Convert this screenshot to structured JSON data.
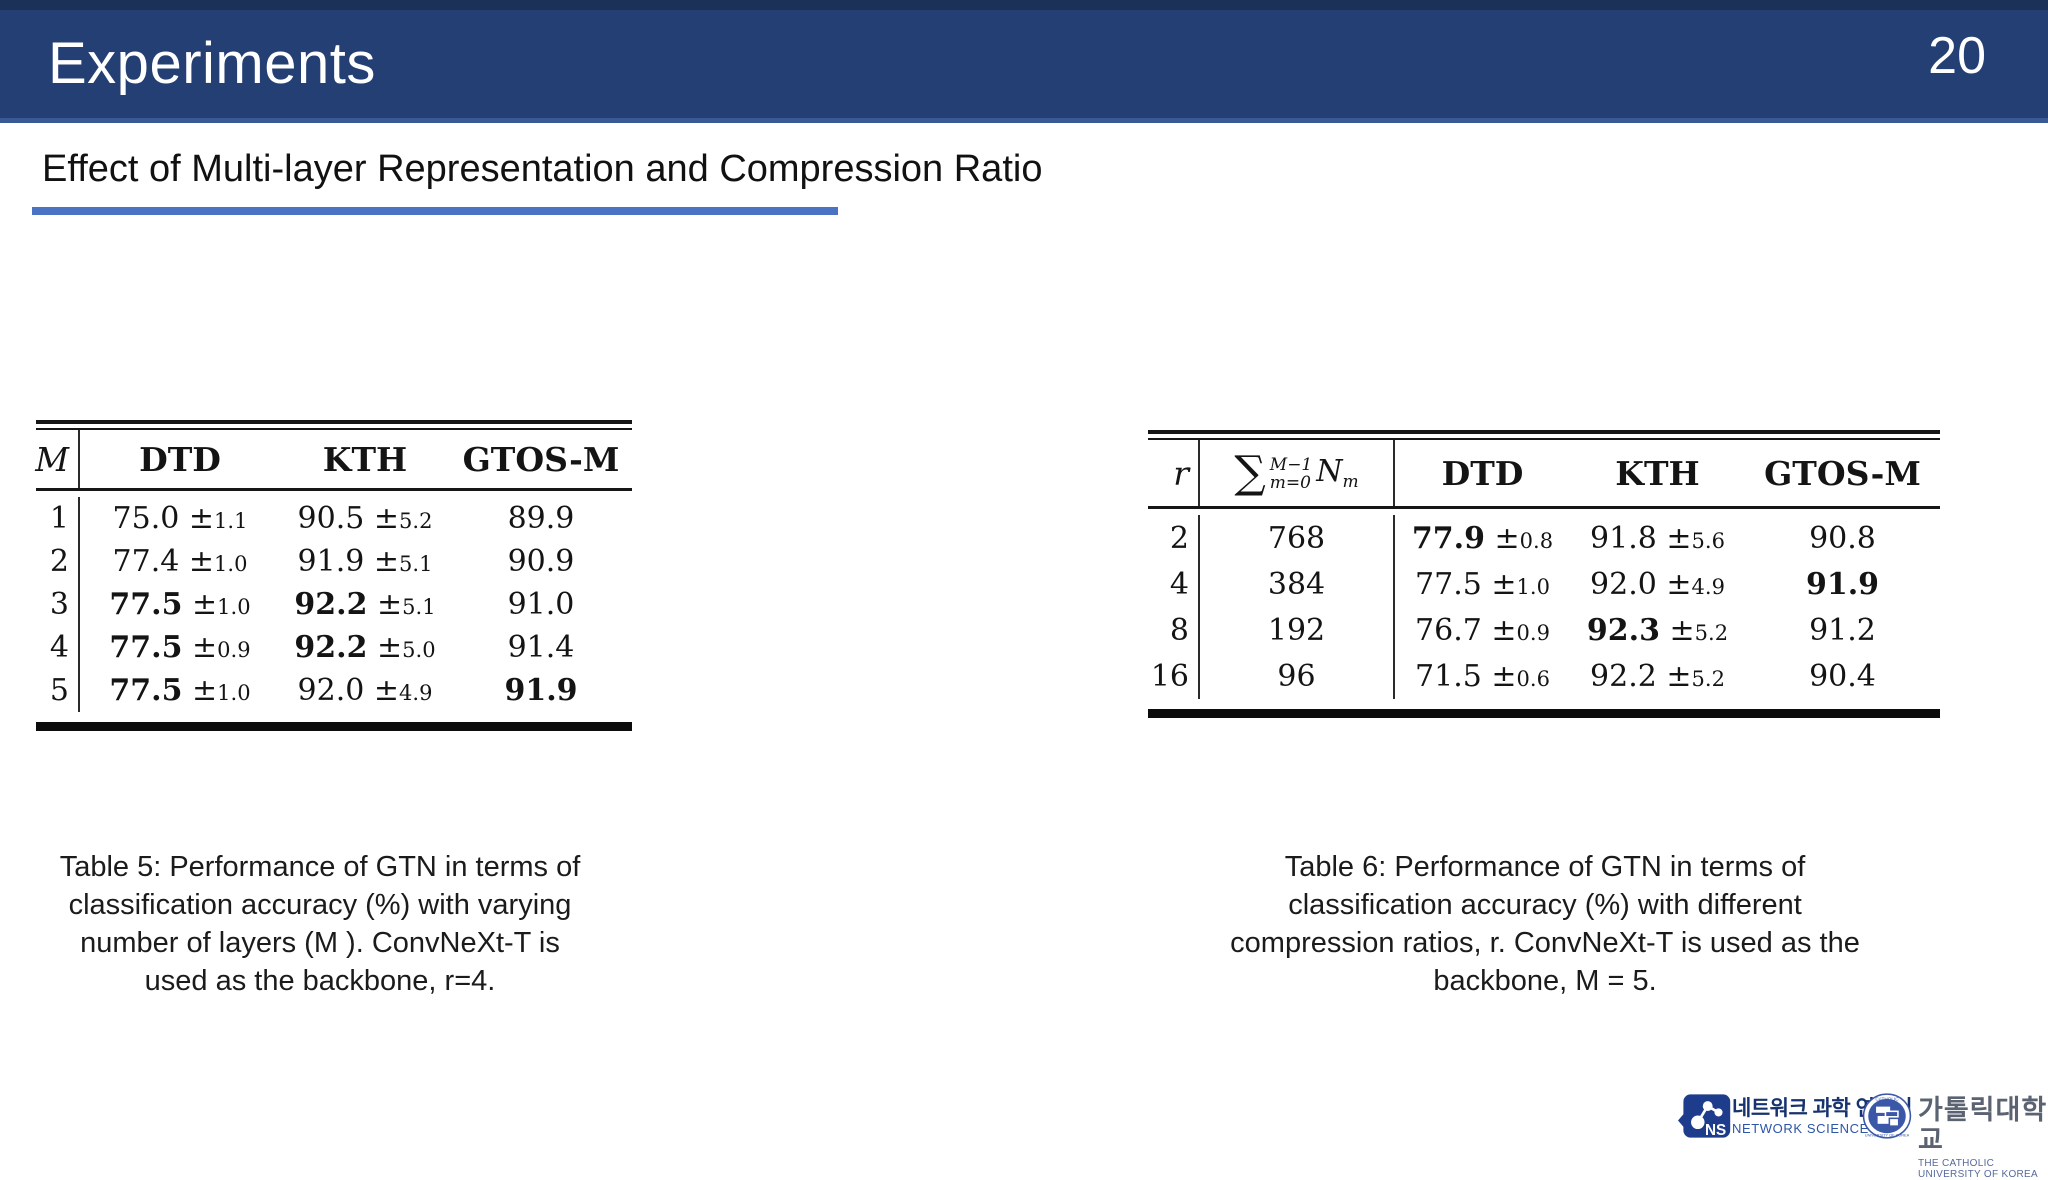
{
  "slide": {
    "page_number": "20",
    "title": "Experiments",
    "subtitle": "Effect of Multi-layer Representation and Compression Ratio"
  },
  "colors": {
    "header_bar": "#243f73",
    "accent_underline": "#4a73c4",
    "ns_logo_blue": "#1e3c8c",
    "cuk_emblem_blue": "#3b57a8"
  },
  "symbols": {
    "plus_minus": "±"
  },
  "table5": {
    "col_headers": [
      "M",
      "DTD",
      "KTH",
      "GTOS-M"
    ],
    "rows": [
      [
        "1",
        {
          "v": "75.0",
          "pm": "1.1"
        },
        {
          "v": "90.5",
          "pm": "5.2"
        },
        {
          "v": "89.9"
        }
      ],
      [
        "2",
        {
          "v": "77.4",
          "pm": "1.0"
        },
        {
          "v": "91.9",
          "pm": "5.1"
        },
        {
          "v": "90.9"
        }
      ],
      [
        "3",
        {
          "v": "77.5",
          "pm": "1.0",
          "b": true
        },
        {
          "v": "92.2",
          "pm": "5.1",
          "b": true
        },
        {
          "v": "91.0"
        }
      ],
      [
        "4",
        {
          "v": "77.5",
          "pm": "0.9",
          "b": true
        },
        {
          "v": "92.2",
          "pm": "5.0",
          "b": true
        },
        {
          "v": "91.4"
        }
      ],
      [
        "5",
        {
          "v": "77.5",
          "pm": "1.0",
          "b": true
        },
        {
          "v": "92.0",
          "pm": "4.9"
        },
        {
          "v": "91.9",
          "b": true
        }
      ]
    ],
    "caption_lines": [
      "Table 5: Performance of GTN in terms of",
      "classification accuracy (%) with varying",
      "number of layers (M ). ConvNeXt-T is",
      "used as the backbone, r=4."
    ]
  },
  "table6": {
    "col_r": "r",
    "formula": {
      "sigma": "∑",
      "sup": "M−1",
      "sub": "m=0",
      "variable": "N",
      "variable_sub": "m"
    },
    "col_headers": [
      "DTD",
      "KTH",
      "GTOS-M"
    ],
    "rows": [
      [
        "2",
        "768",
        {
          "v": "77.9",
          "pm": "0.8",
          "b": true
        },
        {
          "v": "91.8",
          "pm": "5.6"
        },
        {
          "v": "90.8"
        }
      ],
      [
        "4",
        "384",
        {
          "v": "77.5",
          "pm": "1.0"
        },
        {
          "v": "92.0",
          "pm": "4.9"
        },
        {
          "v": "91.9",
          "b": true
        }
      ],
      [
        "8",
        "192",
        {
          "v": "76.7",
          "pm": "0.9"
        },
        {
          "v": "92.3",
          "pm": "5.2",
          "b": true
        },
        {
          "v": "91.2"
        }
      ],
      [
        "16",
        "96",
        {
          "v": "71.5",
          "pm": "0.6"
        },
        {
          "v": "92.2",
          "pm": "5.2"
        },
        {
          "v": "90.4"
        }
      ]
    ],
    "caption_lines": [
      "Table 6: Performance of GTN in terms of",
      "classification accuracy (%) with different",
      "compression ratios, r. ConvNeXt-T is used as the",
      "backbone, M = 5."
    ]
  },
  "footer_logos": {
    "ns_lab": {
      "abbr": "NS",
      "name_ko": "네트워크 과학 연구실",
      "name_en": "NETWORK SCIENCE LAB"
    },
    "cuk": {
      "name_ko": "가톨릭대학교",
      "name_en": "THE CATHOLIC UNIVERSITY OF KOREA"
    }
  }
}
